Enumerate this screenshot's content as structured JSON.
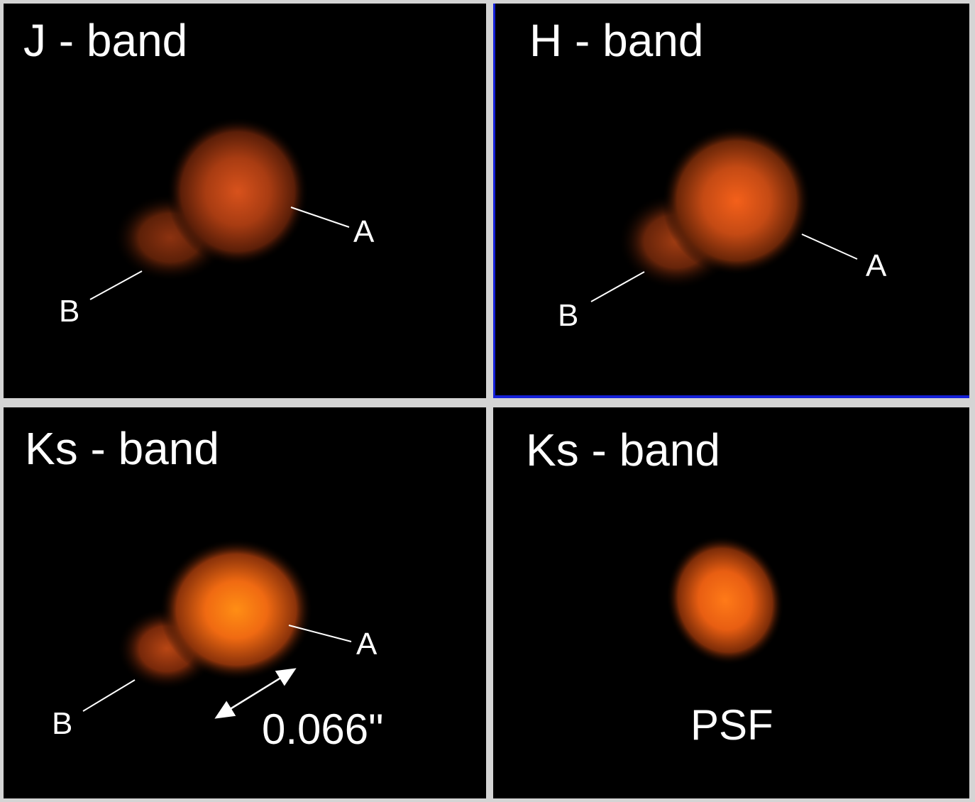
{
  "colors": {
    "background": "#000000",
    "separator": "#d4d4d4",
    "highlight_border": "#1420d8",
    "text": "#ffffff",
    "source_glow": "#ff6a10"
  },
  "panels": {
    "j": {
      "title": "J - band",
      "label_a": "A",
      "label_b": "B"
    },
    "h": {
      "title": "H - band",
      "label_a": "A",
      "label_b": "B"
    },
    "ks": {
      "title": "Ks - band",
      "label_a": "A",
      "label_b": "B",
      "separation": "0.066\""
    },
    "psf": {
      "title": "Ks - band",
      "label": "PSF"
    }
  }
}
